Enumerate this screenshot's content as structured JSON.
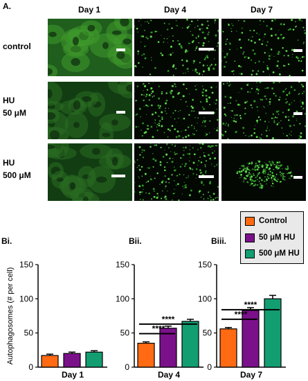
{
  "panel_a_label": "A.",
  "micrograph_columns": [
    "Day 1",
    "Day 4",
    "Day 7"
  ],
  "micrograph_rows": [
    {
      "line1": "control",
      "line2": ""
    },
    {
      "line1": "HU",
      "line2": "50 μM"
    },
    {
      "line1": "HU",
      "line2": "500 μM"
    }
  ],
  "legend": [
    {
      "label": "Control",
      "color": "#ff6a13"
    },
    {
      "label": "50 μM HU",
      "color": "#7b118a"
    },
    {
      "label": "500 μM HU",
      "color": "#139e72"
    }
  ],
  "significance_label": "****",
  "chart_data": [
    {
      "type": "bar",
      "panel": "Bi.",
      "xlabel": "Day 1",
      "ylabel": "Autophagosomes (# per cell)",
      "ylim": [
        0,
        150
      ],
      "yticks": [
        0,
        50,
        100,
        150
      ],
      "categories": [
        "Control",
        "50 μM HU",
        "500 μM HU"
      ],
      "values": [
        17,
        20,
        22
      ],
      "errors": [
        2,
        2,
        2
      ],
      "significance": []
    },
    {
      "type": "bar",
      "panel": "Bii.",
      "xlabel": "Day 4",
      "ylabel": "",
      "ylim": [
        0,
        150
      ],
      "yticks": [
        0,
        50,
        100,
        150
      ],
      "categories": [
        "Control",
        "50 μM HU",
        "500 μM HU"
      ],
      "values": [
        35,
        57,
        67
      ],
      "errors": [
        2,
        3,
        3
      ],
      "significance": [
        {
          "from": 0,
          "to": 1,
          "label": "****"
        },
        {
          "from": 0,
          "to": 2,
          "label": "****"
        }
      ]
    },
    {
      "type": "bar",
      "panel": "Biii.",
      "xlabel": "Day 7",
      "ylabel": "",
      "ylim": [
        0,
        150
      ],
      "yticks": [
        0,
        50,
        100,
        150
      ],
      "categories": [
        "Control",
        "50 μM HU",
        "500 μM HU"
      ],
      "values": [
        56,
        83,
        100
      ],
      "errors": [
        2,
        4,
        5
      ],
      "significance": [
        {
          "from": 0,
          "to": 1,
          "label": "****"
        },
        {
          "from": 0,
          "to": 2,
          "label": "****"
        }
      ]
    }
  ]
}
